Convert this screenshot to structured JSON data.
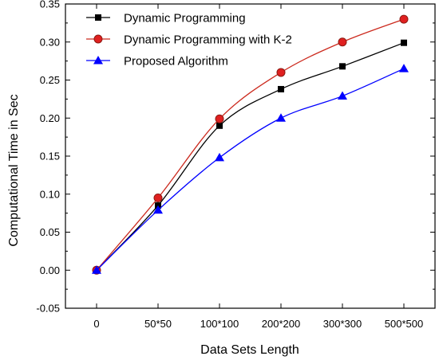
{
  "chart_data": {
    "type": "line",
    "xlabel": "Data Sets Length",
    "ylabel": "Computational Time in Sec",
    "categories": [
      "0",
      "50*50",
      "100*100",
      "200*200",
      "300*300",
      "500*500"
    ],
    "ylim": [
      -0.05,
      0.35
    ],
    "yticks": [
      -0.05,
      0.0,
      0.05,
      0.1,
      0.15,
      0.2,
      0.25,
      0.3,
      0.35
    ],
    "ytick_labels": [
      "-0.05",
      "0.00",
      "0.05",
      "0.10",
      "0.15",
      "0.20",
      "0.25",
      "0.30",
      "0.35"
    ],
    "grid": false,
    "legend_position": "top-left",
    "series": [
      {
        "name": "Dynamic Programming",
        "values": [
          0.0,
          0.085,
          0.19,
          0.238,
          0.268,
          0.299
        ],
        "color": "#000000",
        "marker": "square"
      },
      {
        "name": "Dynamic Programming with K-2",
        "values": [
          0.0,
          0.095,
          0.199,
          0.26,
          0.3,
          0.33
        ],
        "color": "#cc2a1e",
        "marker": "circle"
      },
      {
        "name": "Proposed Algorithm",
        "values": [
          0.0,
          0.079,
          0.148,
          0.2,
          0.229,
          0.265
        ],
        "color": "#0000ff",
        "marker": "triangle"
      }
    ]
  }
}
